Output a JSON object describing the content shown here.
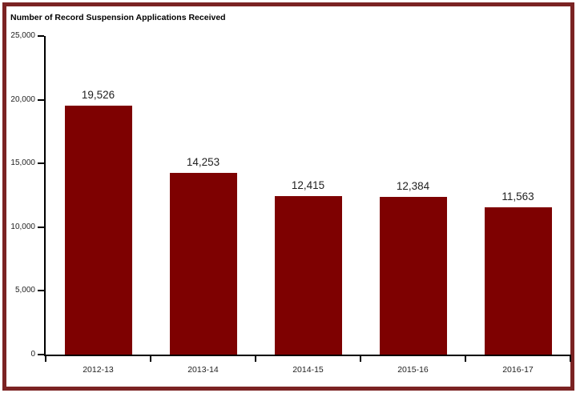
{
  "chart_data": {
    "type": "bar",
    "title": "Number of Record Suspension Applications Received",
    "categories": [
      "2012-13",
      "2013-14",
      "2014-15",
      "2015-16",
      "2016-17"
    ],
    "values": [
      19526,
      14253,
      12415,
      12384,
      11563
    ],
    "value_labels": [
      "19,526",
      "14,253",
      "12,415",
      "12,384",
      "11,563"
    ],
    "ylim": [
      0,
      25000
    ],
    "ytick_interval": 5000,
    "yticks": [
      0,
      5000,
      10000,
      15000,
      20000,
      25000
    ],
    "ytick_labels": [
      "0",
      "5,000",
      "10,000",
      "15,000",
      "20,000",
      "25,000"
    ],
    "xlabel": "",
    "ylabel": "",
    "grid": false,
    "legend": null,
    "colors": {
      "bar": "#7e0101",
      "frame_border": "#7b2323",
      "axis": "#000000",
      "text": "#1f1f1f",
      "background": "#ffffff"
    }
  }
}
